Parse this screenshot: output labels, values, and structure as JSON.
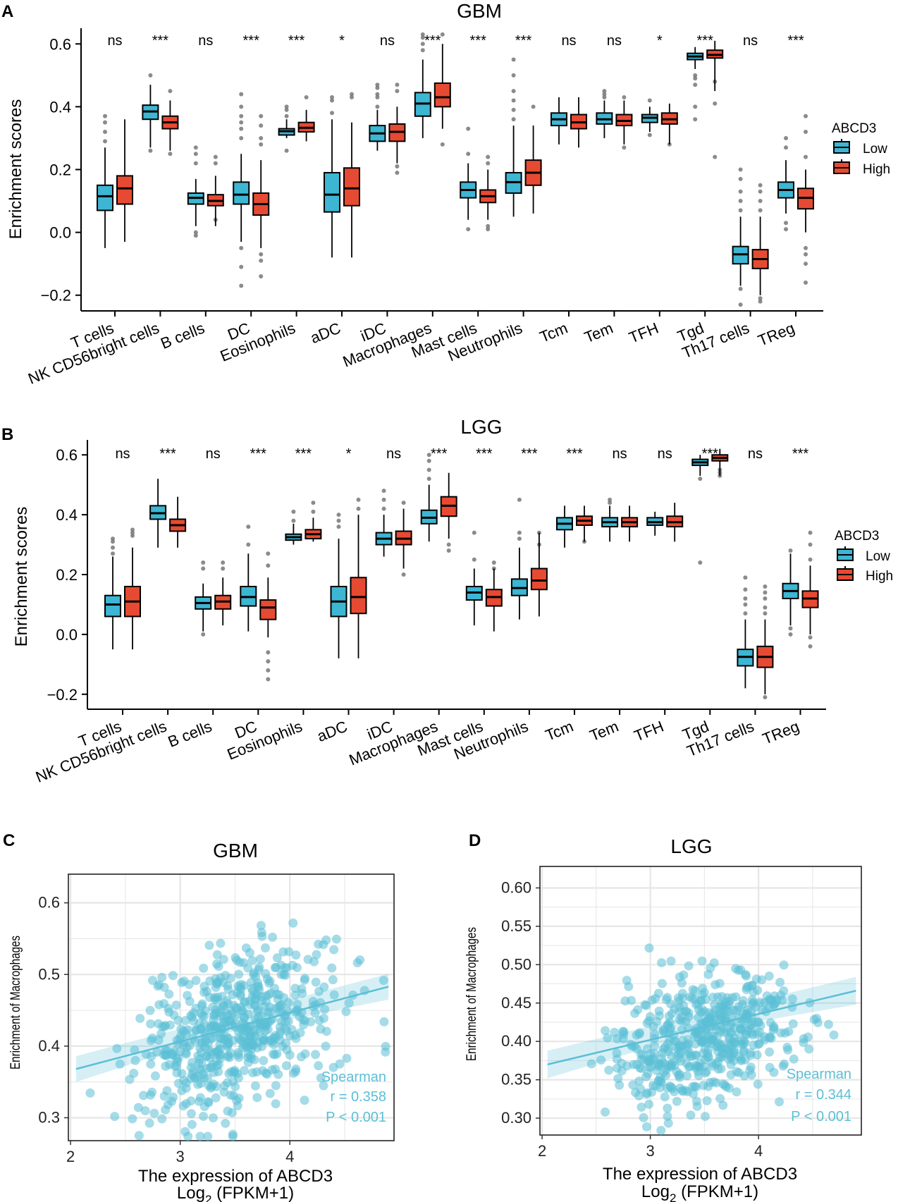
{
  "colors": {
    "low": "#3cb6d2",
    "high": "#e74a32",
    "scatter": "#5bbfd6",
    "scatter_text": "#5bbfd6",
    "grid": "#e6e6e6",
    "outlier": "#6e6e6e"
  },
  "chart_data": [
    {
      "id": "A",
      "panel_label": "A",
      "type": "box",
      "title": "GBM",
      "ylabel": "Enrichment scores",
      "ylim": [
        -0.25,
        0.65
      ],
      "yticks": [
        -0.2,
        0.0,
        0.2,
        0.4,
        0.6
      ],
      "ytick_labels": [
        "−0.2",
        "0.0",
        "0.2",
        "0.4",
        "0.6"
      ],
      "legend": {
        "title": "ABCD3",
        "entries": [
          "Low",
          "High"
        ]
      },
      "categories": [
        "T cells",
        "NK CD56bright cells",
        "B cells",
        "DC",
        "Eosinophils",
        "aDC",
        "iDC",
        "Macrophages",
        "Mast cells",
        "Neutrophils",
        "Tcm",
        "Tem",
        "TFH",
        "Tgd",
        "Th17 cells",
        "TReg"
      ],
      "significance": [
        "ns",
        "***",
        "ns",
        "***",
        "***",
        "*",
        "ns",
        "***",
        "***",
        "***",
        "ns",
        "ns",
        "*",
        "***",
        "ns",
        "***"
      ],
      "series": [
        {
          "name": "Low",
          "boxes": [
            [
              -0.05,
              0.07,
              0.115,
              0.15,
              0.27
            ],
            [
              0.27,
              0.36,
              0.385,
              0.405,
              0.47
            ],
            [
              0.02,
              0.09,
              0.11,
              0.125,
              0.17
            ],
            [
              -0.03,
              0.09,
              0.12,
              0.16,
              0.25
            ],
            [
              0.3,
              0.31,
              0.322,
              0.33,
              0.36
            ],
            [
              -0.08,
              0.065,
              0.12,
              0.19,
              0.36
            ],
            [
              0.26,
              0.29,
              0.315,
              0.34,
              0.39
            ],
            [
              0.3,
              0.37,
              0.41,
              0.445,
              0.55
            ],
            [
              0.04,
              0.11,
              0.135,
              0.16,
              0.22
            ],
            [
              0.05,
              0.125,
              0.16,
              0.19,
              0.34
            ],
            [
              0.28,
              0.34,
              0.36,
              0.38,
              0.43
            ],
            [
              0.3,
              0.345,
              0.36,
              0.38,
              0.42
            ],
            [
              0.32,
              0.35,
              0.365,
              0.375,
              0.4
            ],
            [
              0.52,
              0.55,
              0.56,
              0.57,
              0.59
            ],
            [
              -0.17,
              -0.1,
              -0.07,
              -0.045,
              0.05
            ],
            [
              0.06,
              0.11,
              0.135,
              0.16,
              0.23
            ]
          ],
          "outliers": [
            [
              0.29,
              0.32,
              0.35,
              0.37
            ],
            [
              0.26,
              0.5
            ],
            [
              0.0,
              -0.01,
              0.22,
              0.25,
              0.27
            ],
            [
              -0.05,
              -0.11,
              -0.17,
              0.3,
              0.33,
              0.35,
              0.37,
              0.4,
              0.44
            ],
            [
              0.26,
              0.37,
              0.39,
              0.4
            ],
            [
              0.38,
              0.42,
              0.43
            ],
            [
              0.4,
              0.43,
              0.44,
              0.46,
              0.47
            ],
            [
              0.58,
              0.6,
              0.62,
              0.63
            ],
            [
              0.01,
              0.25,
              0.33
            ],
            [
              0.36,
              0.39,
              0.42,
              0.45,
              0.5,
              0.55
            ],
            [],
            [
              0.43,
              0.44,
              0.45
            ],
            [
              0.31,
              0.42
            ],
            [
              0.4,
              0.47,
              0.49,
              0.5,
              0.36
            ],
            [
              0.07,
              0.1,
              0.13,
              0.17,
              0.2,
              -0.23,
              -0.18
            ],
            [
              0.01,
              0.03,
              0.27,
              0.3
            ]
          ]
        },
        {
          "name": "High",
          "boxes": [
            [
              -0.03,
              0.09,
              0.14,
              0.18,
              0.36
            ],
            [
              0.26,
              0.33,
              0.35,
              0.37,
              0.42
            ],
            [
              0.02,
              0.085,
              0.1,
              0.12,
              0.18
            ],
            [
              -0.05,
              0.055,
              0.09,
              0.125,
              0.23
            ],
            [
              0.29,
              0.32,
              0.333,
              0.35,
              0.39
            ],
            [
              -0.08,
              0.085,
              0.14,
              0.205,
              0.35
            ],
            [
              0.22,
              0.29,
              0.32,
              0.345,
              0.4
            ],
            [
              0.33,
              0.4,
              0.43,
              0.475,
              0.6
            ],
            [
              0.04,
              0.095,
              0.115,
              0.135,
              0.2
            ],
            [
              0.06,
              0.15,
              0.19,
              0.23,
              0.34
            ],
            [
              0.27,
              0.33,
              0.35,
              0.375,
              0.43
            ],
            [
              0.28,
              0.34,
              0.355,
              0.375,
              0.42
            ],
            [
              0.28,
              0.345,
              0.36,
              0.38,
              0.41
            ],
            [
              0.45,
              0.555,
              0.565,
              0.58,
              0.61
            ],
            [
              -0.2,
              -0.115,
              -0.085,
              -0.055,
              0.05
            ],
            [
              0.0,
              0.075,
              0.11,
              0.14,
              0.2
            ]
          ],
          "outliers": [
            [],
            [
              0.25,
              0.45
            ],
            [
              0.04,
              0.22,
              0.24
            ],
            [
              -0.07,
              -0.09,
              -0.14,
              0.28,
              0.3,
              0.34,
              0.37
            ],
            [
              0.43
            ],
            [
              0.43,
              0.44
            ],
            [
              0.19,
              0.21,
              0.45,
              0.47
            ],
            [
              0.28,
              0.63
            ],
            [
              0.01,
              0.02,
              0.22,
              0.24
            ],
            [
              0.4
            ],
            [],
            [
              0.27,
              0.43
            ],
            [
              0.28
            ],
            [
              0.24,
              0.41,
              0.48
            ],
            [
              0.07,
              0.1,
              0.13,
              0.15,
              -0.21,
              -0.22
            ],
            [
              -0.05,
              -0.07,
              -0.1,
              -0.16,
              0.24,
              0.32,
              0.37
            ]
          ]
        }
      ]
    },
    {
      "id": "B",
      "panel_label": "B",
      "type": "box",
      "title": "LGG",
      "ylabel": "Enrichment scores",
      "ylim": [
        -0.25,
        0.65
      ],
      "yticks": [
        -0.2,
        0.0,
        0.2,
        0.4,
        0.6
      ],
      "ytick_labels": [
        "−0.2",
        "0.0",
        "0.2",
        "0.4",
        "0.6"
      ],
      "legend": {
        "title": "ABCD3",
        "entries": [
          "Low",
          "High"
        ]
      },
      "categories": [
        "T cells",
        "NK CD56bright cells",
        "B cells",
        "DC",
        "Eosinophils",
        "aDC",
        "iDC",
        "Macrophages",
        "Mast cells",
        "Neutrophils",
        "Tcm",
        "Tem",
        "TFH",
        "Tgd",
        "Th17 cells",
        "TReg"
      ],
      "significance": [
        "ns",
        "***",
        "ns",
        "***",
        "***",
        "*",
        "ns",
        "***",
        "***",
        "***",
        "***",
        "ns",
        "ns",
        "***",
        "ns",
        "***"
      ],
      "series": [
        {
          "name": "Low",
          "boxes": [
            [
              -0.05,
              0.06,
              0.1,
              0.13,
              0.26
            ],
            [
              0.29,
              0.385,
              0.405,
              0.43,
              0.52
            ],
            [
              0.01,
              0.085,
              0.105,
              0.125,
              0.17
            ],
            [
              0.01,
              0.095,
              0.125,
              0.16,
              0.27
            ],
            [
              0.3,
              0.315,
              0.325,
              0.335,
              0.37
            ],
            [
              -0.08,
              0.06,
              0.11,
              0.16,
              0.32
            ],
            [
              0.26,
              0.3,
              0.32,
              0.34,
              0.4
            ],
            [
              0.31,
              0.37,
              0.39,
              0.415,
              0.5
            ],
            [
              0.03,
              0.115,
              0.14,
              0.16,
              0.22
            ],
            [
              0.05,
              0.13,
              0.155,
              0.185,
              0.29
            ],
            [
              0.29,
              0.35,
              0.37,
              0.39,
              0.43
            ],
            [
              0.31,
              0.36,
              0.375,
              0.39,
              0.43
            ],
            [
              0.33,
              0.365,
              0.375,
              0.39,
              0.41
            ],
            [
              0.53,
              0.565,
              0.575,
              0.585,
              0.6
            ],
            [
              -0.18,
              -0.105,
              -0.075,
              -0.05,
              0.05
            ],
            [
              0.03,
              0.12,
              0.145,
              0.17,
              0.27
            ]
          ],
          "outliers": [
            [
              0.27,
              0.29,
              0.31,
              0.32
            ],
            [],
            [
              0.0,
              0.22,
              0.24
            ],
            [
              0.3,
              0.36
            ],
            [
              0.38,
              0.41
            ],
            [
              0.36,
              0.38,
              0.4
            ],
            [
              0.42,
              0.45,
              0.48
            ],
            [
              0.52,
              0.55,
              0.58,
              0.6
            ],
            [
              0.25,
              0.34
            ],
            [
              0.32,
              0.34,
              0.45
            ],
            [],
            [
              0.44,
              0.45
            ],
            [],
            [
              0.52,
              0.24
            ],
            [
              0.07,
              0.1,
              0.12,
              0.15,
              0.19
            ],
            [
              0.0,
              0.02,
              0.28
            ]
          ]
        },
        {
          "name": "High",
          "boxes": [
            [
              -0.05,
              0.06,
              0.11,
              0.16,
              0.29
            ],
            [
              0.29,
              0.345,
              0.365,
              0.385,
              0.46
            ],
            [
              0.03,
              0.085,
              0.11,
              0.13,
              0.19
            ],
            [
              -0.01,
              0.05,
              0.09,
              0.115,
              0.19
            ],
            [
              0.31,
              0.32,
              0.335,
              0.35,
              0.39
            ],
            [
              -0.08,
              0.07,
              0.125,
              0.19,
              0.4
            ],
            [
              0.22,
              0.3,
              0.32,
              0.345,
              0.42
            ],
            [
              0.32,
              0.395,
              0.43,
              0.46,
              0.54
            ],
            [
              0.01,
              0.095,
              0.125,
              0.15,
              0.22
            ],
            [
              0.06,
              0.15,
              0.18,
              0.22,
              0.34
            ],
            [
              0.31,
              0.365,
              0.38,
              0.395,
              0.43
            ],
            [
              0.31,
              0.36,
              0.375,
              0.39,
              0.43
            ],
            [
              0.31,
              0.36,
              0.375,
              0.395,
              0.44
            ],
            [
              0.53,
              0.58,
              0.59,
              0.6,
              0.62
            ],
            [
              -0.2,
              -0.11,
              -0.075,
              -0.04,
              0.05
            ],
            [
              0.0,
              0.09,
              0.12,
              0.145,
              0.23
            ]
          ],
          "outliers": [
            [
              0.33,
              0.34,
              0.35
            ],
            [],
            [
              0.22,
              0.24
            ],
            [
              -0.06,
              -0.09,
              -0.12,
              -0.15,
              0.23,
              0.27
            ],
            [
              0.41,
              0.44
            ],
            [
              0.42,
              0.45
            ],
            [
              0.2,
              0.44
            ],
            [
              0.28,
              0.3
            ],
            [
              0.22,
              0.24
            ],
            [
              0.3,
              0.34
            ],
            [
              0.31
            ],
            [],
            [],
            [
              0.53,
              0.54,
              0.55
            ],
            [
              0.07,
              0.09,
              0.12,
              0.14,
              0.16,
              -0.21
            ],
            [
              -0.01,
              -0.04,
              0.25,
              0.3,
              0.34
            ]
          ]
        }
      ]
    },
    {
      "id": "C",
      "panel_label": "C",
      "type": "scatter",
      "title": "GBM",
      "xlabel": "The expression of ABCD3",
      "xlabel2_base": "Log",
      "xlabel2_sub": "2",
      "xlabel2_rest": " (FPKM+1)",
      "ylabel": "Enrichment of Macrophages",
      "xlim": [
        1.98,
        4.95
      ],
      "ylim": [
        0.268,
        0.64
      ],
      "xticks": [
        2,
        3,
        4
      ],
      "xtick_labels": [
        "2",
        "3",
        "4"
      ],
      "yticks": [
        0.3,
        0.4,
        0.5,
        0.6
      ],
      "ytick_labels": [
        "0.3",
        "0.4",
        "0.5",
        "0.6"
      ],
      "n_points": 580,
      "x_center": 3.5,
      "x_sd": 0.44,
      "y_center": 0.42,
      "y_sd": 0.055,
      "trend": {
        "x0": 2.05,
        "y0": 0.368,
        "x1": 4.9,
        "y1": 0.483
      },
      "stats": [
        "Spearman",
        "r = 0.358",
        "P < 0.001"
      ]
    },
    {
      "id": "D",
      "panel_label": "D",
      "type": "scatter",
      "title": "LGG",
      "xlabel": "The expression of ABCD3",
      "xlabel2_base": "Log",
      "xlabel2_sub": "2",
      "xlabel2_rest": " (FPKM+1)",
      "ylabel": "Enrichment of Macrophages",
      "xlim": [
        1.98,
        4.95
      ],
      "ylim": [
        0.278,
        0.628
      ],
      "xticks": [
        2,
        3,
        4
      ],
      "xtick_labels": [
        "2",
        "3",
        "4"
      ],
      "yticks": [
        0.3,
        0.35,
        0.4,
        0.45,
        0.5,
        0.55,
        0.6
      ],
      "ytick_labels": [
        "0.30",
        "0.35",
        "0.40",
        "0.45",
        "0.50",
        "0.55",
        "0.60"
      ],
      "n_points": 520,
      "x_center": 3.5,
      "x_sd": 0.42,
      "y_center": 0.405,
      "y_sd": 0.042,
      "trend": {
        "x0": 2.05,
        "y0": 0.37,
        "x1": 4.9,
        "y1": 0.466
      },
      "stats": [
        "Spearman",
        "r = 0.344",
        "P < 0.001"
      ]
    }
  ]
}
